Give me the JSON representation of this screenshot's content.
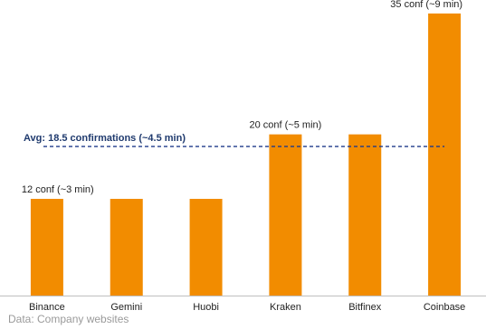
{
  "chart_data": {
    "type": "bar",
    "categories": [
      "Binance",
      "Gemini",
      "Huobi",
      "Kraken",
      "Bitfinex",
      "Coinbase"
    ],
    "values": [
      12,
      12,
      12,
      20,
      20,
      35
    ],
    "data_labels": [
      "12 conf (~3 min)",
      "",
      "",
      "20 conf (~5 min)",
      "",
      "35 conf (~9 min)"
    ],
    "title": "",
    "xlabel": "",
    "ylabel": "",
    "ylim": [
      0,
      36
    ],
    "grid": false,
    "bar_color": "#f28c00",
    "reference_line": {
      "value": 18.5,
      "label": "Avg: 18.5 confirmations (~4.5 min)",
      "color": "#1f3a8a",
      "style": "dashed"
    }
  },
  "source": "Data: Company websites"
}
